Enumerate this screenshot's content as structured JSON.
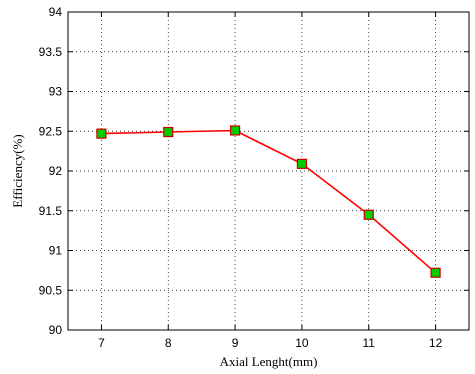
{
  "chart_data": {
    "type": "line",
    "xlabel": "Axial Lenght(mm)",
    "ylabel": "Efficiency(%)",
    "xlim": [
      6.5,
      12.5
    ],
    "ylim": [
      90,
      94
    ],
    "x_ticks": [
      "7",
      "8",
      "9",
      "10",
      "11",
      "12"
    ],
    "y_ticks": [
      "90",
      "90.5",
      "91",
      "91.5",
      "92",
      "92.5",
      "93",
      "93.5",
      "94"
    ],
    "grid": true,
    "series": [
      {
        "x": [
          7,
          8,
          9,
          10,
          11,
          12
        ],
        "values": [
          92.47,
          92.49,
          92.51,
          92.09,
          91.45,
          90.72
        ],
        "line_color": "#ff0000",
        "marker": "square",
        "marker_fill": "#00cc00",
        "marker_edge": "#cc0000"
      }
    ]
  }
}
